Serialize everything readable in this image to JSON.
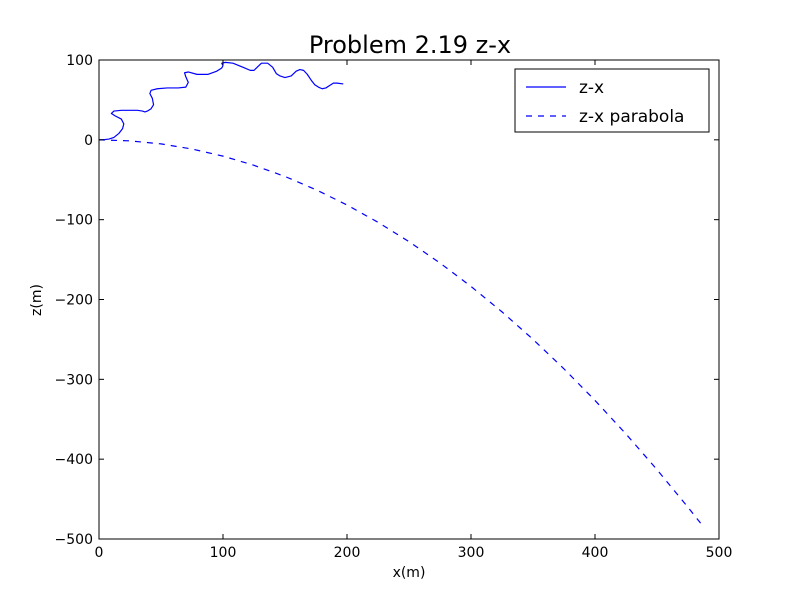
{
  "chart_data": {
    "type": "line",
    "title": "Problem 2.19 z-x",
    "xlabel": "x(m)",
    "ylabel": "z(m)",
    "xlim": [
      0,
      500
    ],
    "ylim": [
      -500,
      100
    ],
    "xticks": [
      0,
      100,
      200,
      300,
      400,
      500
    ],
    "yticks": [
      -500,
      -400,
      -300,
      -200,
      -100,
      0,
      100
    ],
    "xtick_labels": [
      "0",
      "100",
      "200",
      "300",
      "400",
      "500"
    ],
    "ytick_labels": [
      "−500",
      "−400",
      "−300",
      "−200",
      "−100",
      "0",
      "100"
    ],
    "grid": false,
    "legend_position": "top-right",
    "series": [
      {
        "name": "z-x",
        "style": "solid",
        "color": "#0000ff",
        "x": [
          0,
          3,
          8,
          12,
          16,
          19,
          20,
          18,
          13,
          10,
          12,
          18,
          25,
          31,
          35,
          37,
          39,
          42,
          44,
          43,
          41,
          42,
          47,
          55,
          64,
          70,
          72,
          70,
          69,
          72,
          79,
          88,
          95,
          99,
          100,
          99,
          102,
          108,
          116,
          122,
          125,
          127,
          131,
          136,
          140,
          143,
          146,
          150,
          155,
          159,
          162,
          165,
          168,
          171,
          174,
          177,
          180,
          183,
          186,
          189,
          192,
          197
        ],
        "y": [
          0,
          0,
          1,
          3,
          8,
          14,
          20,
          26,
          30,
          33,
          36,
          37,
          37,
          37,
          36,
          35,
          36,
          39,
          44,
          52,
          58,
          62,
          64,
          65,
          65,
          66,
          72,
          79,
          84,
          85,
          82,
          82,
          86,
          90,
          93,
          96,
          97,
          96,
          91,
          87,
          87,
          90,
          96,
          96,
          91,
          83,
          80,
          78,
          80,
          86,
          88,
          87,
          82,
          75,
          69,
          66,
          64,
          65,
          68,
          71,
          71,
          70
        ]
      },
      {
        "name": "z-x parabola",
        "style": "dashed",
        "color": "#0000ff",
        "x": [
          0,
          25,
          50,
          75,
          100,
          125,
          150,
          175,
          200,
          225,
          250,
          275,
          300,
          325,
          350,
          375,
          400,
          425,
          450,
          475,
          488
        ],
        "y": [
          0,
          -1.3,
          -5.1,
          -11.5,
          -20.4,
          -31.9,
          -45.9,
          -62.5,
          -81.6,
          -103.3,
          -127.5,
          -154.3,
          -183.6,
          -215.5,
          -249.9,
          -286.9,
          -326.4,
          -368.5,
          -413.1,
          -460.3,
          -485.7
        ]
      }
    ]
  }
}
